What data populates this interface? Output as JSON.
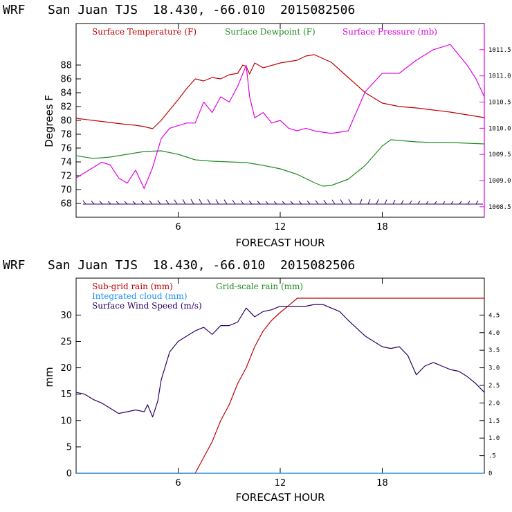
{
  "chart_data": [
    {
      "type": "line",
      "title": "WRF   San Juan TJS  18.430, -66.010  2015082506",
      "xlabel": "FORECAST HOUR",
      "ylabel": "Degrees F",
      "xlim": [
        0,
        24
      ],
      "ylim": [
        66,
        94
      ],
      "y2lim": [
        1008.3,
        1012.0
      ],
      "x_ticks": [
        "6",
        "12",
        "18"
      ],
      "y_ticks": [
        "68",
        "70",
        "72",
        "74",
        "76",
        "78",
        "80",
        "82",
        "84",
        "86",
        "88"
      ],
      "y2_ticks": [
        "1008.5",
        "1009.0",
        "1009.5",
        "1010.0",
        "1010.5",
        "1011.0",
        "1011.5"
      ],
      "legend": [
        {
          "label": "Surface Temperature (F)",
          "color": "#c00000"
        },
        {
          "label": "Surface Dewpoint (F)",
          "color": "#228b22"
        },
        {
          "label": "Surface Pressure (mb)",
          "color": "#e000e0"
        }
      ],
      "series": [
        {
          "name": "Surface Temperature (F)",
          "color": "#c00000",
          "axis": "left",
          "x": [
            0,
            1,
            2,
            3,
            3.5,
            4,
            4.5,
            5,
            6,
            6.5,
            7,
            7.5,
            8,
            8.5,
            9,
            9.5,
            9.8,
            10,
            10.2,
            10.5,
            11,
            12,
            12.5,
            13,
            13.5,
            14,
            15,
            16,
            17,
            18,
            19,
            20,
            21,
            22,
            23,
            24
          ],
          "y": [
            80.3,
            80,
            79.7,
            79.4,
            79.3,
            79.1,
            78.8,
            80,
            83,
            84.6,
            86,
            85.7,
            86.2,
            86,
            86.6,
            86.8,
            88,
            87.8,
            86.7,
            88.3,
            87.6,
            88.3,
            88.5,
            88.7,
            89.3,
            89.5,
            88.4,
            86.2,
            84,
            82.5,
            82,
            81.8,
            81.5,
            81.2,
            80.8,
            80.4
          ]
        },
        {
          "name": "Surface Dewpoint (F)",
          "color": "#228b22",
          "axis": "left",
          "x": [
            0,
            1,
            2,
            3,
            4,
            5,
            6,
            7,
            8,
            9,
            10,
            11,
            12,
            13,
            14,
            14.5,
            15,
            16,
            17,
            18,
            18.5,
            19,
            20,
            21,
            22,
            23,
            24
          ],
          "y": [
            74.9,
            74.5,
            74.7,
            75.1,
            75.5,
            75.6,
            75.1,
            74.3,
            74.1,
            74,
            73.9,
            73.5,
            73,
            72.2,
            71,
            70.5,
            70.6,
            71.5,
            73.5,
            76.3,
            77.2,
            77.1,
            76.9,
            76.8,
            76.8,
            76.7,
            76.6
          ]
        },
        {
          "name": "Surface Pressure (mb)",
          "color": "#e000e0",
          "axis": "right",
          "x": [
            0,
            1,
            1.5,
            2,
            2.5,
            3,
            3.5,
            4,
            4.5,
            5,
            5.5,
            6,
            6.5,
            7,
            7.5,
            8,
            8.5,
            9,
            9.5,
            10,
            10.2,
            10.5,
            11,
            11.5,
            12,
            12.5,
            13,
            13.5,
            14,
            15,
            16,
            17,
            18,
            19,
            20,
            20.5,
            21,
            21.5,
            22,
            22.5,
            23,
            23.5,
            24
          ],
          "y": [
            1009.05,
            1009.25,
            1009.35,
            1009.3,
            1009.05,
            1008.95,
            1009.2,
            1008.85,
            1009.25,
            1009.8,
            1010.0,
            1010.05,
            1010.1,
            1010.1,
            1010.5,
            1010.3,
            1010.6,
            1010.5,
            1010.8,
            1011.2,
            1010.6,
            1010.2,
            1010.3,
            1010.1,
            1010.15,
            1010.0,
            1009.95,
            1010.0,
            1009.95,
            1009.9,
            1009.95,
            1010.7,
            1011.05,
            1011.05,
            1011.3,
            1011.4,
            1011.5,
            1011.55,
            1011.6,
            1011.4,
            1011.2,
            1010.95,
            1010.6
          ]
        }
      ]
    },
    {
      "type": "line",
      "title": "WRF   San Juan TJS  18.430, -66.010  2015082506",
      "xlabel": "FORECAST HOUR",
      "ylabel": "mm",
      "xlim": [
        0,
        24
      ],
      "ylim": [
        0,
        37
      ],
      "y2lim": [
        0,
        5.55
      ],
      "x_ticks": [
        "6",
        "12",
        "18"
      ],
      "y_ticks": [
        "0",
        "5",
        "10",
        "15",
        "20",
        "25",
        "30"
      ],
      "y2_ticks": [
        "0",
        ".5",
        "1.0",
        "1.5",
        "2.0",
        "2.5",
        "3.0",
        "3.5",
        "4.0",
        "4.5"
      ],
      "legend": [
        {
          "label": "Sub-grid rain (mm)",
          "color": "#c00000"
        },
        {
          "label": "Grid-scale rain (mm)",
          "color": "#228b22"
        },
        {
          "label": "Integrated cloud (mm)",
          "color": "#1e90ff"
        },
        {
          "label": "Surface Wind Speed (m/s)",
          "color": "#2a0060"
        }
      ],
      "series": [
        {
          "name": "Sub-grid rain (mm)",
          "color": "#c00000",
          "axis": "left",
          "x": [
            0,
            7,
            7.5,
            8,
            8.5,
            9,
            9.5,
            10,
            10.5,
            11,
            11.5,
            12,
            12.5,
            13,
            24
          ],
          "y": [
            0,
            0,
            3,
            6,
            10,
            13,
            17,
            20,
            24,
            27,
            29,
            30.5,
            31.8,
            33.2,
            33.2
          ]
        },
        {
          "name": "Grid-scale rain (mm)",
          "color": "#228b22",
          "axis": "left",
          "x": [
            0,
            24
          ],
          "y": [
            0,
            0
          ]
        },
        {
          "name": "Integrated cloud (mm)",
          "color": "#1e90ff",
          "axis": "left",
          "x": [
            0,
            24
          ],
          "y": [
            0,
            0
          ]
        },
        {
          "name": "Surface Wind Speed (m/s)",
          "color": "#2a0060",
          "axis": "right",
          "x": [
            0,
            0.5,
            1,
            1.5,
            2,
            2.5,
            3,
            3.5,
            4,
            4.2,
            4.5,
            4.8,
            5,
            5.5,
            6,
            6.5,
            7,
            7.5,
            8,
            8.5,
            9,
            9.5,
            10,
            10.5,
            11,
            11.5,
            12,
            12.5,
            13,
            13.5,
            14,
            14.5,
            15,
            15.5,
            16,
            17,
            17.5,
            18,
            18.5,
            19,
            19.5,
            20,
            20.5,
            21,
            21.5,
            22,
            22.5,
            23,
            23.5,
            24
          ],
          "y": [
            2.3,
            2.25,
            2.1,
            2.0,
            1.85,
            1.7,
            1.75,
            1.8,
            1.75,
            1.95,
            1.6,
            2.05,
            2.65,
            3.45,
            3.75,
            3.9,
            4.05,
            4.15,
            3.95,
            4.2,
            4.2,
            4.3,
            4.7,
            4.45,
            4.6,
            4.65,
            4.75,
            4.75,
            4.75,
            4.75,
            4.8,
            4.8,
            4.7,
            4.6,
            4.35,
            3.9,
            3.75,
            3.6,
            3.55,
            3.6,
            3.35,
            2.8,
            3.05,
            3.15,
            3.05,
            2.95,
            2.9,
            2.75,
            2.55,
            2.3
          ]
        }
      ]
    }
  ]
}
